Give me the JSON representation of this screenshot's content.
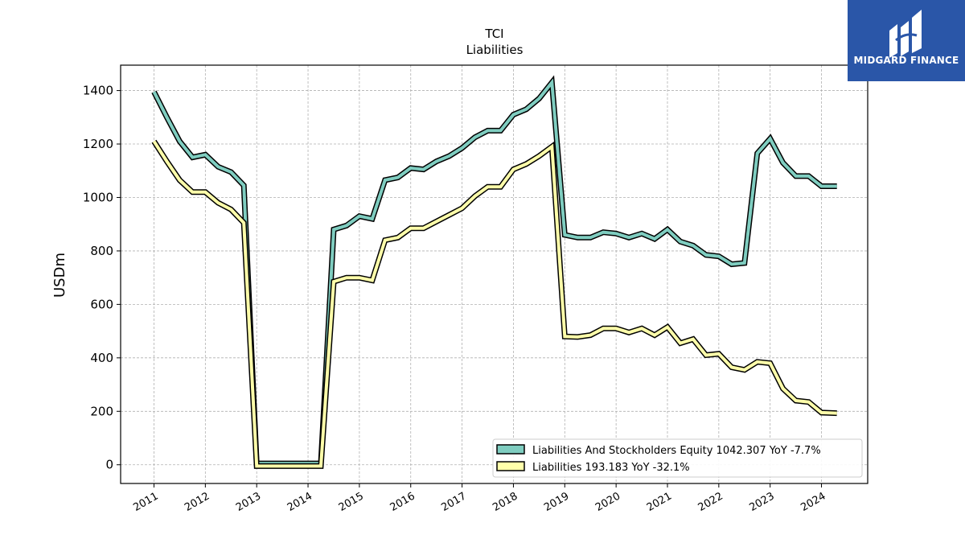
{
  "brand": {
    "name": "MIDGARD FINANCE",
    "bg_color": "#2a56a8"
  },
  "chart_data": {
    "type": "line",
    "title": "TCI",
    "subtitle": "Liabilities",
    "xlabel": "",
    "ylabel": "USDm",
    "xlim": [
      2010.35,
      2024.9
    ],
    "ylim": [
      -70,
      1495
    ],
    "x_ticks": [
      2011,
      2012,
      2013,
      2014,
      2015,
      2016,
      2017,
      2018,
      2019,
      2020,
      2021,
      2022,
      2023,
      2024
    ],
    "x_tick_labels": [
      "2011",
      "2012",
      "2013",
      "2014",
      "2015",
      "2016",
      "2017",
      "2018",
      "2019",
      "2020",
      "2021",
      "2022",
      "2023",
      "2024"
    ],
    "y_ticks": [
      0,
      200,
      400,
      600,
      800,
      1000,
      1200,
      1400
    ],
    "y_tick_labels": [
      "0",
      "200",
      "400",
      "600",
      "800",
      "1000",
      "1200",
      "1400"
    ],
    "grid": true,
    "legend_position": "bottom-right",
    "series": [
      {
        "name": "Liabilities And Stockholders Equity",
        "legend_label": "Liabilities And Stockholders Equity  1042.307 YoY -7.7%",
        "color": "#7fcdc0",
        "x": [
          2011.0,
          2011.25,
          2011.5,
          2011.75,
          2012.0,
          2012.25,
          2012.5,
          2012.75,
          2013.0,
          2013.25,
          2013.5,
          2013.75,
          2014.0,
          2014.25,
          2014.5,
          2014.75,
          2015.0,
          2015.25,
          2015.5,
          2015.75,
          2016.0,
          2016.25,
          2016.5,
          2016.75,
          2017.0,
          2017.25,
          2017.5,
          2017.75,
          2018.0,
          2018.25,
          2018.5,
          2018.75,
          2019.0,
          2019.25,
          2019.5,
          2019.75,
          2020.0,
          2020.25,
          2020.5,
          2020.75,
          2021.0,
          2021.25,
          2021.5,
          2021.75,
          2022.0,
          2022.25,
          2022.5,
          2022.75,
          2023.0,
          2023.25,
          2023.5,
          2023.75,
          2024.0,
          2024.3
        ],
        "y": [
          1395,
          1300,
          1210,
          1150,
          1160,
          1115,
          1095,
          1045,
          5,
          5,
          5,
          5,
          5,
          5,
          880,
          895,
          930,
          920,
          1065,
          1075,
          1110,
          1105,
          1135,
          1155,
          1185,
          1225,
          1250,
          1250,
          1310,
          1330,
          1370,
          1430,
          860,
          850,
          850,
          870,
          865,
          850,
          865,
          845,
          880,
          835,
          820,
          785,
          780,
          750,
          755,
          1165,
          1220,
          1130,
          1080,
          1080,
          1042,
          1042
        ]
      },
      {
        "name": "Liabilities",
        "legend_label": "Liabilities  193.183 YoY -32.1%",
        "color": "#ffffaa",
        "x": [
          2011.0,
          2011.25,
          2011.5,
          2011.75,
          2012.0,
          2012.25,
          2012.5,
          2012.75,
          2013.0,
          2013.25,
          2013.5,
          2013.75,
          2014.0,
          2014.25,
          2014.5,
          2014.75,
          2015.0,
          2015.25,
          2015.5,
          2015.75,
          2016.0,
          2016.25,
          2016.5,
          2016.75,
          2017.0,
          2017.25,
          2017.5,
          2017.75,
          2018.0,
          2018.25,
          2018.5,
          2018.75,
          2019.0,
          2019.25,
          2019.5,
          2019.75,
          2020.0,
          2020.25,
          2020.5,
          2020.75,
          2021.0,
          2021.25,
          2021.5,
          2021.75,
          2022.0,
          2022.25,
          2022.5,
          2022.75,
          2023.0,
          2023.25,
          2023.5,
          2023.75,
          2024.0,
          2024.3
        ],
        "y": [
          1210,
          1135,
          1065,
          1020,
          1020,
          980,
          955,
          905,
          -5,
          -5,
          -5,
          -5,
          -5,
          -5,
          685,
          700,
          700,
          690,
          840,
          850,
          885,
          885,
          910,
          935,
          960,
          1005,
          1040,
          1040,
          1105,
          1125,
          1155,
          1190,
          480,
          478,
          485,
          510,
          510,
          495,
          510,
          485,
          515,
          455,
          470,
          410,
          415,
          365,
          355,
          385,
          380,
          285,
          240,
          235,
          195,
          193
        ]
      }
    ]
  }
}
